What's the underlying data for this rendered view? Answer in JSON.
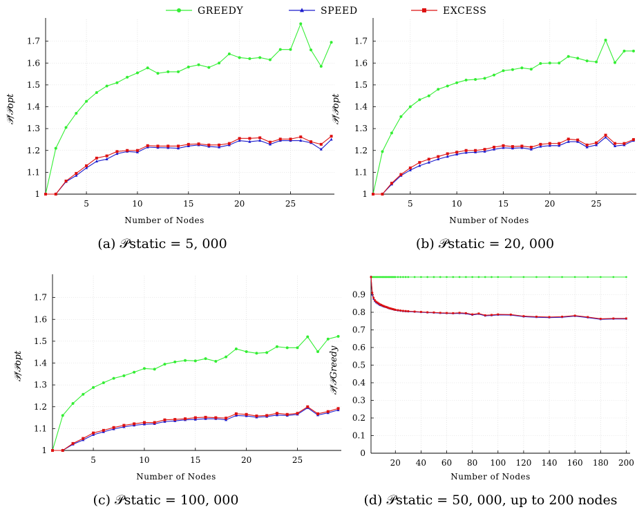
{
  "legend": [
    {
      "name": "Greedy",
      "color": "#33ee33",
      "marker": "circle"
    },
    {
      "name": "Speed",
      "color": "#1a1acc",
      "marker": "triangle"
    },
    {
      "name": "Excess",
      "color": "#dd1111",
      "marker": "square"
    }
  ],
  "chart_data": [
    {
      "type": "line",
      "caption": "(a) 𝒫static = 5, 000",
      "xlabel": "Number of Nodes",
      "ylabel": "𝒫/𝒫opt",
      "xlim": [
        1,
        29.3
      ],
      "ylim": [
        1,
        1.8
      ],
      "xticks": [
        5,
        10,
        15,
        20,
        25
      ],
      "yticks": [
        1,
        1.1,
        1.2,
        1.3,
        1.4,
        1.5,
        1.6,
        1.7
      ],
      "grid": true,
      "x": [
        1,
        2,
        3,
        4,
        5,
        6,
        7,
        8,
        9,
        10,
        11,
        12,
        13,
        14,
        15,
        16,
        17,
        18,
        19,
        20,
        21,
        22,
        23,
        24,
        25,
        26,
        27,
        28,
        29
      ],
      "series": [
        {
          "name": "Greedy",
          "values": [
            1.0,
            1.21,
            1.305,
            1.37,
            1.425,
            1.465,
            1.495,
            1.51,
            1.535,
            1.555,
            1.578,
            1.553,
            1.56,
            1.56,
            1.582,
            1.592,
            1.58,
            1.6,
            1.642,
            1.625,
            1.62,
            1.625,
            1.615,
            1.662,
            1.662,
            1.78,
            1.66,
            1.585,
            1.695
          ]
        },
        {
          "name": "Speed",
          "values": [
            1.0,
            1.0,
            1.057,
            1.085,
            1.12,
            1.15,
            1.16,
            1.185,
            1.195,
            1.192,
            1.215,
            1.213,
            1.212,
            1.21,
            1.22,
            1.225,
            1.218,
            1.215,
            1.225,
            1.245,
            1.24,
            1.245,
            1.228,
            1.245,
            1.245,
            1.245,
            1.235,
            1.205,
            1.25
          ]
        },
        {
          "name": "Excess",
          "values": [
            1.0,
            1.0,
            1.06,
            1.095,
            1.13,
            1.165,
            1.175,
            1.195,
            1.2,
            1.2,
            1.222,
            1.22,
            1.22,
            1.22,
            1.228,
            1.23,
            1.225,
            1.225,
            1.232,
            1.255,
            1.255,
            1.258,
            1.238,
            1.252,
            1.252,
            1.262,
            1.24,
            1.228,
            1.265
          ]
        }
      ]
    },
    {
      "type": "line",
      "caption": "(b) 𝒫static = 20, 000",
      "xlabel": "Number of Nodes",
      "ylabel": "𝒫/𝒫opt",
      "xlim": [
        1,
        29.3
      ],
      "ylim": [
        1,
        1.8
      ],
      "xticks": [
        5,
        10,
        15,
        20,
        25
      ],
      "yticks": [
        1,
        1.1,
        1.2,
        1.3,
        1.4,
        1.5,
        1.6,
        1.7
      ],
      "grid": true,
      "x": [
        1,
        2,
        3,
        4,
        5,
        6,
        7,
        8,
        9,
        10,
        11,
        12,
        13,
        14,
        15,
        16,
        17,
        18,
        19,
        20,
        21,
        22,
        23,
        24,
        25,
        26,
        27,
        28,
        29
      ],
      "series": [
        {
          "name": "Greedy",
          "values": [
            1.0,
            1.195,
            1.28,
            1.355,
            1.4,
            1.432,
            1.45,
            1.48,
            1.495,
            1.51,
            1.522,
            1.525,
            1.53,
            1.545,
            1.565,
            1.57,
            1.578,
            1.572,
            1.598,
            1.6,
            1.6,
            1.63,
            1.622,
            1.61,
            1.605,
            1.705,
            1.602,
            1.655,
            1.655
          ]
        },
        {
          "name": "Speed",
          "values": [
            1.0,
            1.0,
            1.045,
            1.085,
            1.11,
            1.13,
            1.145,
            1.16,
            1.172,
            1.182,
            1.19,
            1.192,
            1.195,
            1.205,
            1.212,
            1.21,
            1.212,
            1.205,
            1.218,
            1.222,
            1.222,
            1.24,
            1.24,
            1.215,
            1.225,
            1.26,
            1.22,
            1.225,
            1.245
          ]
        },
        {
          "name": "Excess",
          "values": [
            1.0,
            1.0,
            1.05,
            1.09,
            1.12,
            1.145,
            1.16,
            1.172,
            1.185,
            1.192,
            1.2,
            1.2,
            1.205,
            1.215,
            1.222,
            1.218,
            1.22,
            1.215,
            1.228,
            1.232,
            1.232,
            1.252,
            1.248,
            1.225,
            1.235,
            1.27,
            1.232,
            1.232,
            1.25
          ]
        }
      ]
    },
    {
      "type": "line",
      "caption": "(c) 𝒫static = 100, 000",
      "xlabel": "Number of Nodes",
      "ylabel": "𝒫/𝒫opt",
      "xlim": [
        1,
        29.3
      ],
      "ylim": [
        1,
        1.8
      ],
      "xticks": [
        5,
        10,
        15,
        20,
        25
      ],
      "yticks": [
        1,
        1.1,
        1.2,
        1.3,
        1.4,
        1.5,
        1.6,
        1.7
      ],
      "grid": true,
      "x": [
        1,
        2,
        3,
        4,
        5,
        6,
        7,
        8,
        9,
        10,
        11,
        12,
        13,
        14,
        15,
        16,
        17,
        18,
        19,
        20,
        21,
        22,
        23,
        24,
        25,
        26,
        27,
        28,
        29
      ],
      "series": [
        {
          "name": "Greedy",
          "values": [
            1.0,
            1.16,
            1.215,
            1.257,
            1.288,
            1.31,
            1.33,
            1.342,
            1.358,
            1.375,
            1.372,
            1.395,
            1.405,
            1.412,
            1.41,
            1.42,
            1.408,
            1.428,
            1.465,
            1.452,
            1.445,
            1.448,
            1.475,
            1.47,
            1.47,
            1.52,
            1.452,
            1.51,
            1.522
          ]
        },
        {
          "name": "Speed",
          "values": [
            1.0,
            1.0,
            1.028,
            1.048,
            1.072,
            1.085,
            1.098,
            1.108,
            1.115,
            1.12,
            1.122,
            1.132,
            1.135,
            1.14,
            1.142,
            1.145,
            1.145,
            1.14,
            1.16,
            1.158,
            1.152,
            1.155,
            1.162,
            1.16,
            1.165,
            1.195,
            1.162,
            1.172,
            1.185
          ]
        },
        {
          "name": "Excess",
          "values": [
            1.0,
            1.0,
            1.032,
            1.055,
            1.08,
            1.092,
            1.105,
            1.115,
            1.122,
            1.128,
            1.128,
            1.14,
            1.142,
            1.145,
            1.15,
            1.152,
            1.15,
            1.148,
            1.168,
            1.165,
            1.158,
            1.16,
            1.17,
            1.165,
            1.17,
            1.2,
            1.168,
            1.178,
            1.192
          ]
        }
      ]
    },
    {
      "type": "line",
      "caption": "(d) 𝒫static = 50, 000, up to 200 nodes",
      "xlabel": "Number of Nodes",
      "ylabel": "𝒫/𝒫Greedy",
      "xlim": [
        1,
        203
      ],
      "ylim": [
        0,
        1
      ],
      "xticks": [
        20,
        40,
        60,
        80,
        100,
        120,
        140,
        160,
        180,
        200
      ],
      "yticks": [
        0,
        0.1,
        0.2,
        0.3,
        0.4,
        0.5,
        0.6,
        0.7,
        0.8,
        0.9
      ],
      "grid": true,
      "x": [
        1,
        2,
        3,
        4,
        5,
        6,
        7,
        8,
        9,
        10,
        11,
        12,
        13,
        14,
        15,
        16,
        17,
        18,
        19,
        20,
        22,
        24,
        26,
        28,
        30,
        35,
        40,
        45,
        50,
        55,
        60,
        65,
        70,
        75,
        80,
        85,
        90,
        95,
        100,
        110,
        120,
        130,
        140,
        150,
        160,
        170,
        180,
        190,
        200
      ],
      "series": [
        {
          "name": "Greedy",
          "values": [
            1,
            1,
            1,
            1,
            1,
            1,
            1,
            1,
            1,
            1,
            1,
            1,
            1,
            1,
            1,
            1,
            1,
            1,
            1,
            1,
            1,
            1,
            1,
            1,
            1,
            1,
            1,
            1,
            1,
            1,
            1,
            1,
            1,
            1,
            1,
            1,
            1,
            1,
            1,
            1,
            1,
            1,
            1,
            1,
            1,
            1,
            1,
            1,
            1
          ]
        },
        {
          "name": "Speed",
          "values": [
            1.0,
            0.9,
            0.875,
            0.862,
            0.855,
            0.85,
            0.845,
            0.84,
            0.838,
            0.835,
            0.832,
            0.83,
            0.828,
            0.825,
            0.822,
            0.82,
            0.818,
            0.816,
            0.814,
            0.812,
            0.81,
            0.808,
            0.806,
            0.805,
            0.804,
            0.802,
            0.8,
            0.798,
            0.797,
            0.795,
            0.794,
            0.793,
            0.794,
            0.792,
            0.785,
            0.79,
            0.78,
            0.782,
            0.785,
            0.784,
            0.775,
            0.772,
            0.77,
            0.772,
            0.778,
            0.77,
            0.76,
            0.762,
            0.762
          ]
        },
        {
          "name": "Excess",
          "values": [
            1.0,
            0.91,
            0.882,
            0.868,
            0.86,
            0.855,
            0.85,
            0.845,
            0.842,
            0.838,
            0.835,
            0.832,
            0.83,
            0.827,
            0.824,
            0.822,
            0.82,
            0.818,
            0.816,
            0.814,
            0.812,
            0.81,
            0.808,
            0.807,
            0.806,
            0.804,
            0.802,
            0.8,
            0.799,
            0.797,
            0.796,
            0.795,
            0.797,
            0.795,
            0.788,
            0.793,
            0.783,
            0.785,
            0.788,
            0.787,
            0.778,
            0.775,
            0.773,
            0.775,
            0.781,
            0.773,
            0.763,
            0.765,
            0.765
          ]
        }
      ]
    }
  ]
}
